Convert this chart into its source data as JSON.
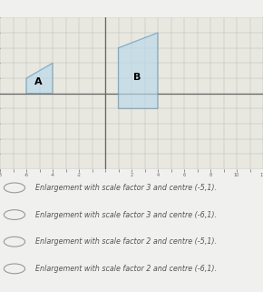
{
  "bg_color_top": "#d8d8d0",
  "bg_color_bottom": "#f0f0ee",
  "plot_bg": "#e8e8e0",
  "grid_color": "#bbbbbb",
  "axis_color": "#666666",
  "xlim": [
    -8,
    12
  ],
  "ylim": [
    -5,
    5
  ],
  "x_axis_y": 0,
  "shape_A": [
    [
      -6,
      0
    ],
    [
      -4,
      0
    ],
    [
      -4,
      2
    ],
    [
      -6,
      1
    ]
  ],
  "shape_B": [
    [
      1,
      -1
    ],
    [
      4,
      -1
    ],
    [
      4,
      4
    ],
    [
      1,
      3
    ]
  ],
  "shape_fill": "#b8d8e8",
  "shape_edge": "#6090b0",
  "shape_alpha": 0.65,
  "label_A": "A",
  "label_B": "B",
  "label_fontsize": 8,
  "options": [
    "Enlargement with scale factor 3 and centre (-5,1).",
    "Enlargement with scale factor 3 and centre (-6,1).",
    "Enlargement with scale factor 2 and centre (-5,1).",
    "Enlargement with scale factor 2 and centre (-6,1)."
  ],
  "option_fontsize": 5.8,
  "radio_color": "#999999",
  "text_color": "#555555"
}
